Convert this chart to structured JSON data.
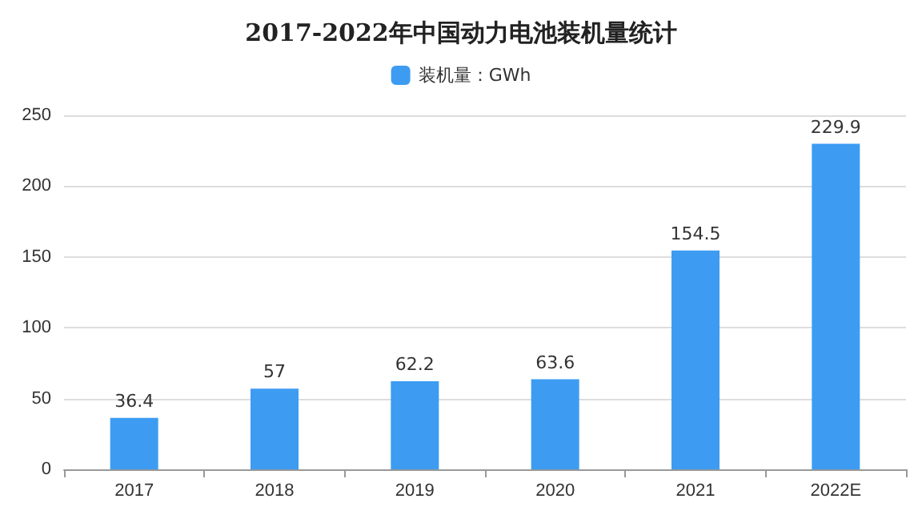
{
  "chart_data": {
    "type": "bar",
    "title": "2017-2022年中国动力电池装机量统计",
    "categories": [
      "2017",
      "2018",
      "2019",
      "2020",
      "2021",
      "2022E"
    ],
    "series": [
      {
        "name": "装机量：GWh",
        "color": "#3d9cf2",
        "values": [
          36.4,
          57,
          62.2,
          63.6,
          154.5,
          229.9
        ]
      }
    ],
    "ylim": [
      0,
      250
    ],
    "yticks": [
      0,
      50,
      100,
      150,
      200,
      250
    ],
    "grid": "y",
    "legend": "top",
    "data_labels": true
  }
}
